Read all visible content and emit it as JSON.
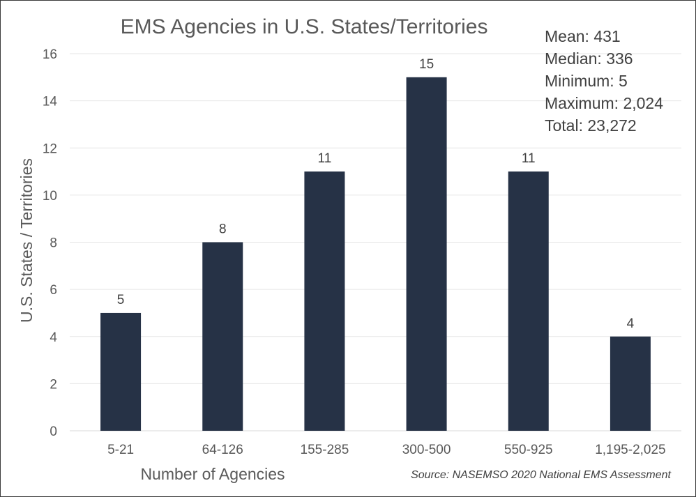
{
  "chart_data": {
    "type": "bar",
    "title": "EMS Agencies in U.S. States/Territories",
    "xlabel": "Number of Agencies",
    "ylabel": "U.S. States / Territories",
    "categories": [
      "5-21",
      "64-126",
      "155-285",
      "300-500",
      "550-925",
      "1,195-2,025"
    ],
    "values": [
      5,
      8,
      11,
      15,
      11,
      4
    ],
    "ylim": [
      0,
      16
    ],
    "yticks": [
      0,
      2,
      4,
      6,
      8,
      10,
      12,
      14,
      16
    ],
    "grid": true,
    "bar_color": "#263246",
    "stats": [
      "Mean: 431",
      "Median: 336",
      "Minimum: 5",
      "Maximum: 2,024",
      "Total: 23,272"
    ],
    "source": "Source: NASEMSO 2020 National EMS Assessment"
  }
}
